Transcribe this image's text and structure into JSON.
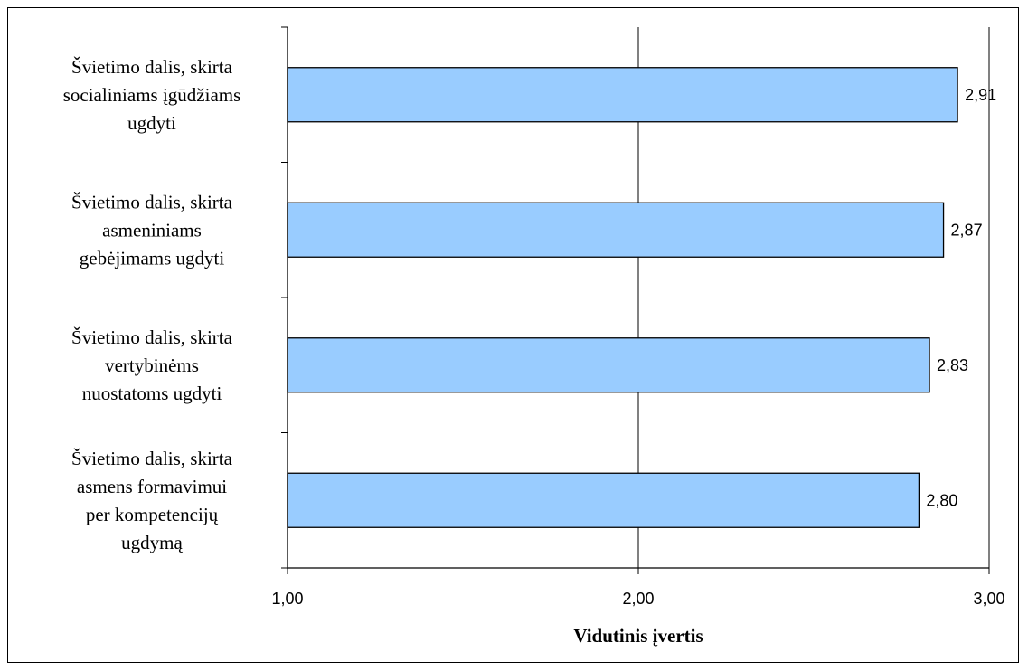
{
  "chart_data": {
    "type": "bar",
    "orientation": "horizontal",
    "categories": [
      [
        "Švietimo dalis, skirta",
        "socialiniams įgūdžiams",
        "ugdyti"
      ],
      [
        "Švietimo dalis, skirta",
        "asmeniniams",
        "gebėjimams ugdyti"
      ],
      [
        "Švietimo dalis, skirta",
        "vertybinėms",
        "nuostatoms ugdyti"
      ],
      [
        "Švietimo dalis, skirta",
        "asmens formavimui",
        "per kompetencijų",
        "ugdymą"
      ]
    ],
    "values": [
      2.91,
      2.87,
      2.83,
      2.8
    ],
    "data_labels": [
      "2,91",
      "2,87",
      "2,83",
      "2,80"
    ],
    "xlim": [
      1.0,
      3.0
    ],
    "x_ticks": [
      1.0,
      2.0,
      3.0
    ],
    "x_tick_labels": [
      "1,00",
      "2,00",
      "3,00"
    ],
    "xlabel": "Vidutinis įvertis",
    "ylabel": "",
    "title": "",
    "grid": "vertical major gridlines",
    "legend": "none",
    "colors": {
      "bar_fill": "#99CCFF",
      "bar_stroke": "#000000",
      "axis": "#000000",
      "grid": "#000000"
    }
  }
}
